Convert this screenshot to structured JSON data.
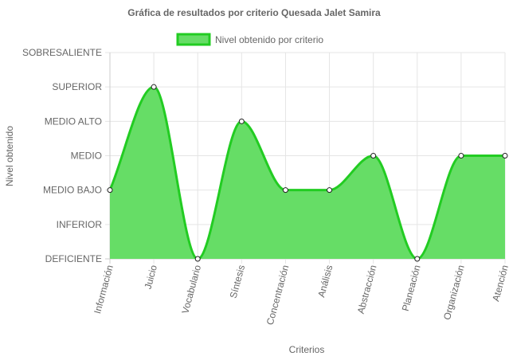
{
  "chart_data": {
    "type": "area",
    "title": "Gráfica de resultados por criterio Quesada Jalet Samira",
    "xlabel": "Criterios",
    "ylabel": "Nivel obtenido",
    "categories": [
      "Información",
      "Juicio",
      "Vocabulario",
      "Síntesis",
      "Concentración",
      "Análisis",
      "Abstracción",
      "Planeación",
      "Organización",
      "Atención"
    ],
    "levels": [
      "DEFICIENTE",
      "INFERIOR",
      "MEDIO BAJO",
      "MEDIO",
      "MEDIO ALTO",
      "SUPERIOR",
      "SOBRESALIENTE"
    ],
    "ylim": [
      0,
      6
    ],
    "series": [
      {
        "name": "Nivel obtenido por criterio",
        "values": [
          2,
          5,
          0,
          4,
          2,
          2,
          3,
          0,
          3,
          3
        ],
        "line_color": "#22cc22",
        "fill_color": "#66dd66"
      }
    ],
    "legend_position": "top",
    "grid": true
  }
}
